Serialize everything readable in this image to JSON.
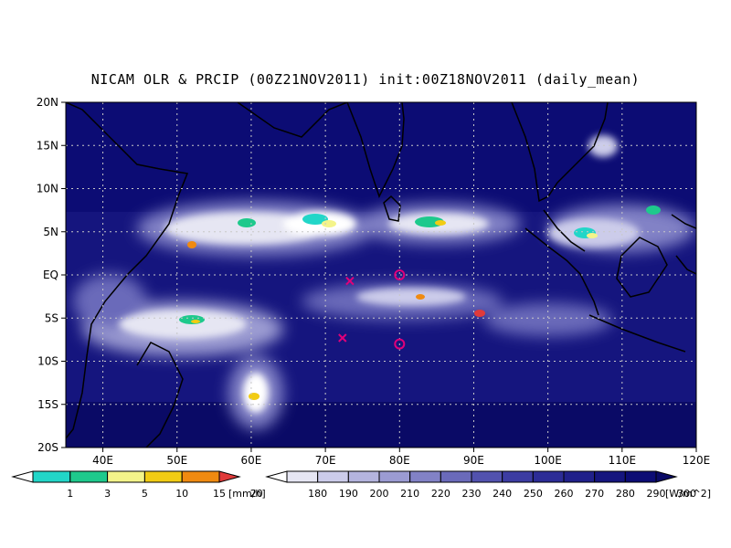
{
  "title": "NICAM OLR & PRCIP (00Z21NOV2011) init:00Z18NOV2011 (daily_mean)",
  "lat_ticks": [
    "20N",
    "15N",
    "10N",
    "5N",
    "EQ",
    "5S",
    "10S",
    "15S",
    "20S"
  ],
  "lon_ticks": [
    "40E",
    "50E",
    "60E",
    "70E",
    "80E",
    "90E",
    "100E",
    "110E",
    "120E"
  ],
  "map_extent": {
    "lon_min": 35,
    "lon_max": 120,
    "lat_min": -20,
    "lat_max": 20
  },
  "colorbars": {
    "precip": {
      "labels": [
        "1",
        "3",
        "5",
        "10",
        "15",
        "20"
      ],
      "unit": "[mm/h]",
      "colors": [
        "#ffffff",
        "#22d6c8",
        "#1ec98c",
        "#f4f48a",
        "#f2cc14",
        "#f08a10",
        "#e03a3a"
      ]
    },
    "olr": {
      "labels": [
        "180",
        "190",
        "200",
        "210",
        "220",
        "230",
        "240",
        "250",
        "260",
        "270",
        "280",
        "290",
        "300"
      ],
      "unit": "[W/m^2]",
      "colors": [
        "#ffffff",
        "#e6e6f3",
        "#ccccea",
        "#b4b4de",
        "#9b9bd2",
        "#8282c6",
        "#6a6aba",
        "#5252ae",
        "#3c3ca2",
        "#2c2c96",
        "#20208a",
        "#15157e",
        "#0c0c74",
        "#0a0a66"
      ]
    }
  },
  "markers": [
    {
      "type": "circle",
      "lon": 80,
      "lat": 0,
      "color": "#e0007a"
    },
    {
      "type": "circle",
      "lon": 80,
      "lat": -8,
      "color": "#e0007a"
    },
    {
      "type": "cross",
      "lon": 73.3,
      "lat": -0.7,
      "color": "#e0007a"
    },
    {
      "type": "cross",
      "lon": 72.3,
      "lat": -7.3,
      "color": "#e0007a"
    }
  ]
}
